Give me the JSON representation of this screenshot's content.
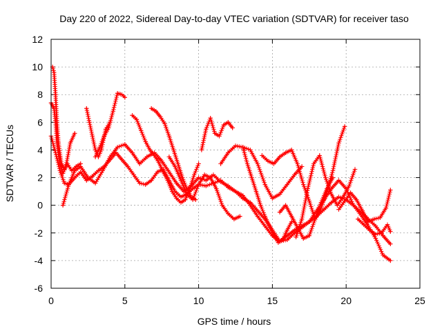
{
  "chart_data": {
    "type": "scatter",
    "title": "Day 220 of 2022, Sidereal Day-to-day VTEC variation (SDTVAR) for receiver taso",
    "xlabel": "GPS time / hours",
    "ylabel": "SDTVAR / TECUs",
    "xlim": [
      0,
      25
    ],
    "ylim": [
      -6,
      12
    ],
    "xticks": [
      "0",
      "5",
      "10",
      "15",
      "20",
      "25"
    ],
    "yticks": [
      "-6",
      "-4",
      "-2",
      "0",
      "2",
      "4",
      "6",
      "8",
      "10",
      "12"
    ],
    "grid": true,
    "marker": "+",
    "color": "#ff0000",
    "series": [
      {
        "name": "s1",
        "x": [
          0.0,
          0.2,
          0.3,
          0.4,
          0.6,
          0.8,
          1.0,
          1.3,
          1.6
        ],
        "y": [
          7.4,
          7.0,
          6.0,
          4.5,
          3.0,
          2.3,
          2.8,
          4.5,
          5.2
        ]
      },
      {
        "name": "s2",
        "x": [
          0.1,
          0.2,
          0.3,
          0.4,
          0.5,
          0.7,
          0.9,
          1.1,
          1.4,
          1.7,
          2.0
        ],
        "y": [
          10.0,
          9.6,
          8.0,
          6.0,
          4.5,
          3.0,
          2.6,
          3.0,
          2.5,
          2.8,
          3.0
        ]
      },
      {
        "name": "s3",
        "x": [
          0.0,
          0.3,
          0.6,
          0.9,
          1.2,
          1.6,
          2.0,
          2.4,
          2.8,
          3.2,
          3.6,
          4.0,
          4.4,
          4.8,
          5.2,
          5.6,
          6.0,
          6.4,
          6.8,
          7.2,
          7.6,
          8.0,
          8.4,
          8.8,
          9.2,
          9.6,
          10.0,
          10.5,
          11.0,
          11.5,
          12.0,
          12.5,
          13.0,
          13.5,
          14.0,
          14.5,
          15.0,
          15.5,
          16.0,
          16.5,
          17.0,
          17.5,
          18.0,
          18.5,
          19.0,
          19.5,
          20.0,
          20.5,
          21.0,
          21.5,
          22.0,
          22.5,
          23.0
        ],
        "y": [
          5.0,
          3.8,
          2.5,
          1.6,
          1.5,
          2.0,
          2.4,
          1.8,
          2.1,
          2.5,
          2.8,
          3.3,
          3.8,
          3.3,
          2.8,
          2.2,
          1.6,
          1.5,
          1.8,
          2.4,
          2.6,
          1.8,
          1.0,
          0.6,
          0.8,
          1.2,
          1.5,
          1.4,
          1.6,
          1.8,
          1.3,
          1.0,
          0.7,
          0.0,
          -0.8,
          -1.5,
          -2.2,
          -2.6,
          -2.2,
          -1.8,
          -1.5,
          -1.2,
          -0.8,
          -0.3,
          0.2,
          0.6,
          0.4,
          0.0,
          -0.5,
          -1.0,
          -1.5,
          -2.2,
          -2.8
        ]
      },
      {
        "name": "s4",
        "x": [
          0.8,
          1.2,
          1.6,
          2.0,
          2.5,
          3.0,
          3.5,
          4.0,
          4.5,
          5.0,
          5.5,
          6.0,
          6.5,
          7.0,
          7.5,
          8.0,
          8.5,
          9.0,
          9.5,
          10.0,
          10.5,
          11.0,
          11.5,
          12.0,
          12.5,
          13.0,
          13.5,
          14.0,
          14.5,
          15.0,
          15.5,
          16.0,
          16.5,
          17.0,
          17.5,
          18.0,
          18.5,
          19.0,
          19.5,
          20.0,
          20.5,
          21.0,
          21.5,
          22.0,
          22.5,
          23.0
        ],
        "y": [
          0.0,
          1.5,
          2.5,
          2.8,
          2.0,
          1.6,
          2.5,
          3.5,
          4.2,
          4.4,
          3.8,
          3.0,
          3.5,
          3.8,
          3.2,
          2.4,
          1.6,
          1.0,
          1.4,
          2.0,
          1.8,
          2.2,
          1.7,
          1.4,
          1.0,
          0.5,
          0.2,
          -0.4,
          -1.0,
          -1.8,
          -2.6,
          -2.5,
          -2.0,
          -1.6,
          -1.2,
          -0.4,
          0.4,
          1.2,
          1.8,
          1.2,
          0.0,
          -0.7,
          -1.5,
          -2.4,
          -3.6,
          -4.0
        ]
      },
      {
        "name": "s5",
        "x": [
          3.0,
          3.3,
          3.6,
          3.9,
          4.2,
          4.5,
          4.8,
          5.0
        ],
        "y": [
          3.5,
          4.2,
          5.0,
          5.6,
          6.8,
          8.1,
          8.0,
          7.8
        ]
      },
      {
        "name": "s6",
        "x": [
          2.4,
          2.6,
          2.8,
          3.0,
          3.2,
          3.4,
          3.7,
          4.0
        ],
        "y": [
          7.0,
          6.0,
          5.0,
          4.0,
          3.5,
          4.0,
          5.5,
          6.0
        ]
      },
      {
        "name": "s7",
        "x": [
          5.5,
          5.8,
          6.1,
          6.4,
          6.7,
          7.0,
          7.3,
          7.6,
          7.9,
          8.2,
          8.5,
          8.8,
          9.1,
          9.4,
          9.7,
          10.0
        ],
        "y": [
          6.5,
          6.2,
          5.4,
          4.6,
          4.0,
          3.6,
          3.1,
          2.4,
          1.8,
          1.0,
          0.5,
          0.2,
          0.4,
          1.2,
          2.2,
          3.0
        ]
      },
      {
        "name": "s8",
        "x": [
          6.8,
          7.1,
          7.4,
          7.7,
          8.0,
          8.3,
          8.6,
          8.9,
          9.2,
          9.5,
          9.8
        ],
        "y": [
          7.0,
          6.8,
          6.4,
          5.9,
          5.0,
          4.0,
          3.0,
          2.0,
          1.2,
          0.6,
          0.4
        ]
      },
      {
        "name": "s9",
        "x": [
          10.2,
          10.5,
          10.8,
          11.1,
          11.4,
          11.7,
          12.0,
          12.3
        ],
        "y": [
          4.0,
          5.5,
          6.3,
          5.2,
          5.0,
          5.8,
          6.0,
          5.6
        ]
      },
      {
        "name": "s10",
        "x": [
          11.5,
          12.0,
          12.5,
          13.0,
          13.5,
          14.0,
          14.5,
          15.0,
          15.5,
          16.0,
          16.5,
          17.0
        ],
        "y": [
          3.0,
          3.8,
          4.3,
          4.2,
          4.0,
          3.0,
          1.5,
          0.5,
          0.8,
          1.5,
          2.2,
          2.8
        ]
      },
      {
        "name": "s11",
        "x": [
          14.3,
          14.7,
          15.1,
          15.5,
          15.9,
          16.3,
          16.7,
          17.1,
          17.5,
          17.9,
          18.3,
          18.7,
          19.1,
          19.5,
          19.9
        ],
        "y": [
          3.6,
          3.2,
          3.0,
          3.5,
          3.8,
          4.0,
          3.0,
          1.5,
          0.3,
          -1.0,
          -0.2,
          1.0,
          2.5,
          4.5,
          5.7
        ]
      },
      {
        "name": "s12",
        "x": [
          13.0,
          13.3,
          13.6,
          13.9,
          14.2,
          14.5,
          14.8,
          15.1,
          15.4,
          15.7,
          16.0,
          16.3
        ],
        "y": [
          4.2,
          3.0,
          2.0,
          1.0,
          0.0,
          -0.8,
          -1.5,
          -2.2,
          -2.7,
          -2.5,
          -1.8,
          -1.2
        ]
      },
      {
        "name": "s13",
        "x": [
          16.6,
          17.0,
          17.4,
          17.8,
          18.2,
          18.6,
          19.0,
          19.4,
          19.8,
          20.2,
          20.6
        ],
        "y": [
          -2.3,
          -1.0,
          1.2,
          3.0,
          3.6,
          2.0,
          0.8,
          0.0,
          0.6,
          1.4,
          2.6
        ]
      },
      {
        "name": "s14",
        "x": [
          19.5,
          19.9,
          20.3,
          20.7,
          21.1,
          21.5,
          21.9,
          22.3,
          22.7,
          23.0
        ],
        "y": [
          -0.3,
          0.3,
          0.9,
          0.4,
          -0.4,
          -1.2,
          -1.0,
          -0.9,
          -0.2,
          1.1
        ]
      },
      {
        "name": "s15",
        "x": [
          20.8,
          21.2,
          21.6,
          22.0,
          22.4,
          22.8,
          23.0
        ],
        "y": [
          -1.0,
          -1.4,
          -1.8,
          -2.1,
          -2.0,
          -1.4,
          -1.9
        ]
      },
      {
        "name": "s16",
        "x": [
          8.0,
          8.4,
          8.8,
          9.2,
          9.6,
          10.0,
          10.4,
          10.8,
          11.2,
          11.6,
          12.0,
          12.4,
          12.8
        ],
        "y": [
          3.5,
          2.8,
          1.8,
          0.8,
          0.4,
          1.5,
          2.2,
          2.0,
          1.2,
          0.0,
          -0.6,
          -1.0,
          -0.8
        ]
      },
      {
        "name": "s17",
        "x": [
          15.5,
          15.9,
          16.3,
          16.7,
          17.1,
          17.5,
          17.9,
          18.3,
          18.7,
          19.1
        ],
        "y": [
          -0.5,
          0.0,
          -0.8,
          -1.6,
          -2.4,
          -2.2,
          -1.0,
          0.2,
          1.2,
          2.0
        ]
      }
    ]
  }
}
